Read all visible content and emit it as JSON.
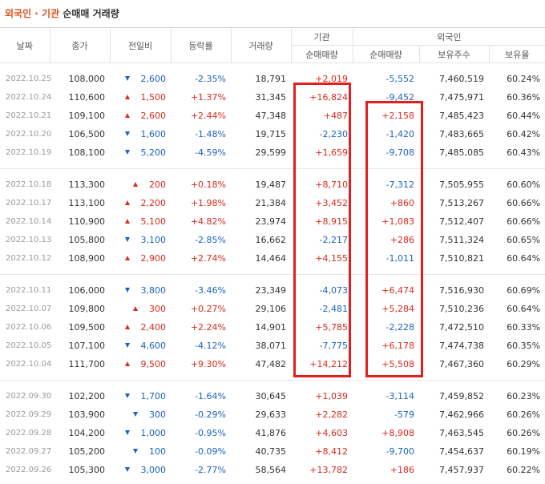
{
  "title": {
    "accent": "외국인 · 기관",
    "rest": "순매매 거래량"
  },
  "table": {
    "header_top": [
      "날짜",
      "종가",
      "전일비",
      "등락률",
      "거래량",
      "기관",
      "외국인"
    ],
    "header_sub": [
      "순매매량",
      "순매매량",
      "보유주수",
      "보유율"
    ],
    "groups": [
      [
        [
          "2022.10.25",
          "108,000",
          "2,600",
          "-2.35%",
          "18,791",
          "+2,019",
          "-5,552",
          "7,460,519",
          "60.24%"
        ],
        [
          "2022.10.24",
          "110,600",
          "1,500",
          "+1.37%",
          "31,345",
          "+16,824",
          "-9,452",
          "7,475,971",
          "60.36%"
        ],
        [
          "2022.10.21",
          "109,100",
          "2,600",
          "+2.44%",
          "47,348",
          "+487",
          "+2,158",
          "7,485,423",
          "60.44%"
        ],
        [
          "2022.10.20",
          "106,500",
          "1,600",
          "-1.48%",
          "19,715",
          "-2,230",
          "-1,420",
          "7,483,665",
          "60.42%"
        ],
        [
          "2022.10.19",
          "108,100",
          "5,200",
          "-4.59%",
          "29,599",
          "+1,659",
          "-9,708",
          "7,485,085",
          "60.43%"
        ]
      ],
      [
        [
          "2022.10.18",
          "113,300",
          "200",
          "+0.18%",
          "19,487",
          "+8,710",
          "-7,312",
          "7,505,955",
          "60.60%"
        ],
        [
          "2022.10.17",
          "113,100",
          "2,200",
          "+1.98%",
          "21,384",
          "+3,452",
          "+860",
          "7,513,267",
          "60.66%"
        ],
        [
          "2022.10.14",
          "110,900",
          "5,100",
          "+4.82%",
          "23,974",
          "+8,915",
          "+1,083",
          "7,512,407",
          "60.66%"
        ],
        [
          "2022.10.13",
          "105,800",
          "3,100",
          "-2.85%",
          "16,662",
          "-2,217",
          "+286",
          "7,511,324",
          "60.65%"
        ],
        [
          "2022.10.12",
          "108,900",
          "2,900",
          "+2.74%",
          "14,464",
          "+4,155",
          "-1,011",
          "7,510,821",
          "60.64%"
        ]
      ],
      [
        [
          "2022.10.11",
          "106,000",
          "3,800",
          "-3.46%",
          "23,349",
          "-4,073",
          "+6,474",
          "7,516,930",
          "60.69%"
        ],
        [
          "2022.10.07",
          "109,800",
          "300",
          "+0.27%",
          "29,106",
          "-2,481",
          "+5,284",
          "7,510,236",
          "60.64%"
        ],
        [
          "2022.10.06",
          "109,500",
          "2,400",
          "+2.24%",
          "14,901",
          "+5,785",
          "-2,228",
          "7,472,510",
          "60.33%"
        ],
        [
          "2022.10.05",
          "107,100",
          "4,600",
          "-4.12%",
          "38,071",
          "-7,775",
          "+6,178",
          "7,474,738",
          "60.35%"
        ],
        [
          "2022.10.04",
          "111,700",
          "9,500",
          "+9.30%",
          "47,482",
          "+14,212",
          "+5,508",
          "7,467,360",
          "60.29%"
        ]
      ],
      [
        [
          "2022.09.30",
          "102,200",
          "1,700",
          "-1.64%",
          "30,645",
          "+1,039",
          "-3,114",
          "7,459,852",
          "60.23%"
        ],
        [
          "2022.09.29",
          "103,900",
          "300",
          "-0.29%",
          "29,633",
          "+2,282",
          "-579",
          "7,462,966",
          "60.26%"
        ],
        [
          "2022.09.28",
          "104,200",
          "1,000",
          "-0.95%",
          "41,876",
          "+4,603",
          "+8,908",
          "7,463,545",
          "60.26%"
        ],
        [
          "2022.09.27",
          "105,200",
          "100",
          "-0.09%",
          "40,735",
          "+8,412",
          "-9,700",
          "7,454,637",
          "60.19%"
        ],
        [
          "2022.09.26",
          "105,300",
          "3,000",
          "-2.77%",
          "58,564",
          "+13,782",
          "+186",
          "7,457,937",
          "60.22%"
        ]
      ]
    ]
  }
}
